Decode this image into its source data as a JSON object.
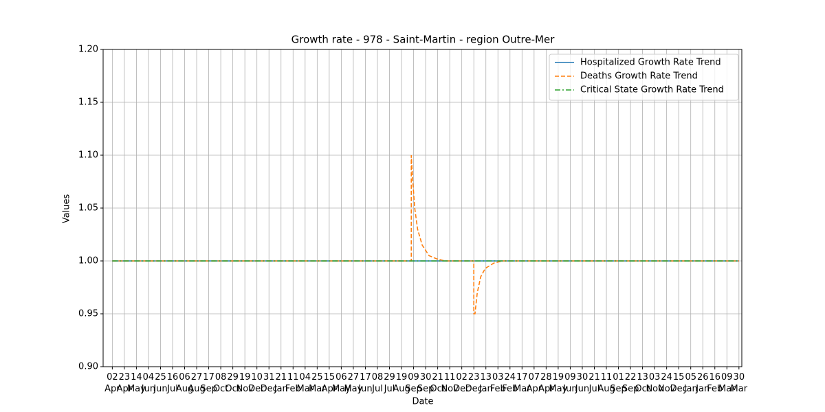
{
  "chart_data": {
    "type": "line",
    "title": "Growth rate - 978 - Saint-Martin - region Outre-Mer",
    "xlabel": "Date",
    "ylabel": "Values",
    "xlim": [
      -16,
      1097
    ],
    "ylim": [
      0.9,
      1.2
    ],
    "yticks": [
      {
        "value": 0.9,
        "label": "0.90"
      },
      0.95,
      {
        "value": 1.0,
        "label": "1.00"
      },
      1.05,
      {
        "value": 1.1,
        "label": "1.10"
      },
      1.15,
      {
        "value": 1.2,
        "label": "1.20"
      }
    ],
    "xticks": [
      {
        "value": 0,
        "label": "02\nApr"
      },
      {
        "value": 21,
        "label": "23\nApr"
      },
      {
        "value": 42,
        "label": "14\nMay"
      },
      {
        "value": 63,
        "label": "04\nJun"
      },
      {
        "value": 84,
        "label": "25\nJun"
      },
      {
        "value": 105,
        "label": "16\nJul"
      },
      {
        "value": 126,
        "label": "06\nAug"
      },
      {
        "value": 147,
        "label": "27\nAug"
      },
      {
        "value": 168,
        "label": "17\nSep"
      },
      {
        "value": 189,
        "label": "08\nOct"
      },
      {
        "value": 210,
        "label": "29\nOct"
      },
      {
        "value": 231,
        "label": "19\nNov"
      },
      {
        "value": 252,
        "label": "10\nDec"
      },
      {
        "value": 273,
        "label": "31\nDec"
      },
      {
        "value": 294,
        "label": "21\nJan"
      },
      {
        "value": 315,
        "label": "11\nFeb"
      },
      {
        "value": 336,
        "label": "04\nMar"
      },
      {
        "value": 357,
        "label": "25\nMar"
      },
      {
        "value": 378,
        "label": "15\nApr"
      },
      {
        "value": 399,
        "label": "06\nMay"
      },
      {
        "value": 420,
        "label": "27\nMay"
      },
      {
        "value": 441,
        "label": "17\nJun"
      },
      {
        "value": 462,
        "label": "08\nJul"
      },
      {
        "value": 483,
        "label": "29\nJul"
      },
      {
        "value": 504,
        "label": "19\nAug"
      },
      {
        "value": 525,
        "label": "09\nSep"
      },
      {
        "value": 546,
        "label": "30\nSep"
      },
      {
        "value": 567,
        "label": "21\nOct"
      },
      {
        "value": 588,
        "label": "11\nNov"
      },
      {
        "value": 609,
        "label": "02\nDec"
      },
      {
        "value": 630,
        "label": "23\nDec"
      },
      {
        "value": 651,
        "label": "13\nJan"
      },
      {
        "value": 672,
        "label": "03\nFeb"
      },
      {
        "value": 693,
        "label": "24\nFeb"
      },
      {
        "value": 714,
        "label": "17\nMar"
      },
      {
        "value": 735,
        "label": "07\nApr"
      },
      {
        "value": 756,
        "label": "28\nApr"
      },
      {
        "value": 777,
        "label": "19\nMay"
      },
      {
        "value": 798,
        "label": "09\nJun"
      },
      {
        "value": 819,
        "label": "30\nJun"
      },
      {
        "value": 840,
        "label": "21\nJul"
      },
      {
        "value": 861,
        "label": "11\nAug"
      },
      {
        "value": 882,
        "label": "01\nSep"
      },
      {
        "value": 903,
        "label": "22\nSep"
      },
      {
        "value": 924,
        "label": "13\nOct"
      },
      {
        "value": 945,
        "label": "03\nNov"
      },
      {
        "value": 966,
        "label": "24\nNov"
      },
      {
        "value": 987,
        "label": "15\nDec"
      },
      {
        "value": 1008,
        "label": "05\nJan"
      },
      {
        "value": 1029,
        "label": "26\nJan"
      },
      {
        "value": 1050,
        "label": "16\nFeb"
      },
      {
        "value": 1071,
        "label": "09\nMar"
      },
      {
        "value": 1092,
        "label": "30\nMar"
      }
    ],
    "grid": true,
    "legend": "upper right",
    "series": [
      {
        "name": "Hospitalized Growth Rate Trend",
        "color": "#1f77b4",
        "style": "solid",
        "x": [
          0,
          1092
        ],
        "values": [
          1.0,
          1.0
        ]
      },
      {
        "name": "Deaths Growth Rate Trend",
        "color": "#ff7f0e",
        "style": "dashed",
        "x": [
          0,
          521,
          521,
          523,
          527,
          532,
          540,
          552,
          565,
          580,
          630,
          630,
          632,
          636,
          642,
          650,
          665,
          680,
          1092
        ],
        "values": [
          1.0,
          1.0,
          1.1,
          1.08,
          1.05,
          1.03,
          1.015,
          1.005,
          1.002,
          1.0,
          1.0,
          0.95,
          0.95,
          0.97,
          0.985,
          0.993,
          0.998,
          1.0,
          1.0
        ]
      },
      {
        "name": "Critical State Growth Rate Trend",
        "color": "#2ca02c",
        "style": "dashdot",
        "x": [
          0,
          1092
        ],
        "values": [
          1.0,
          1.0
        ]
      }
    ]
  }
}
